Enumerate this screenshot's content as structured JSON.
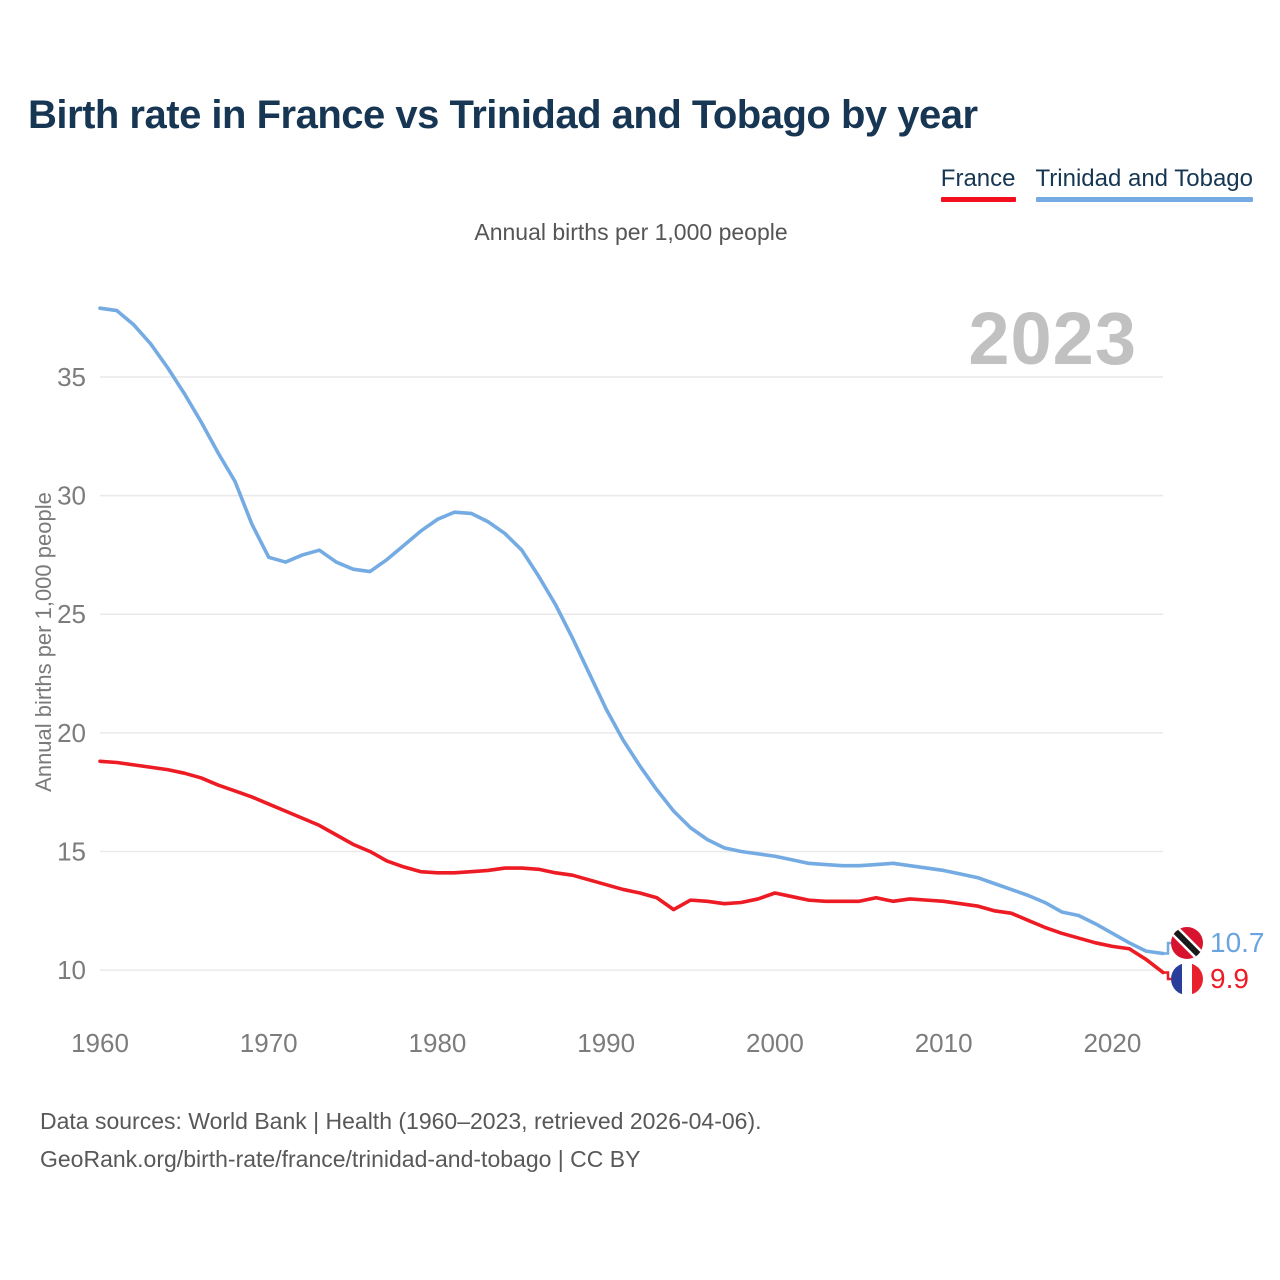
{
  "header": {
    "title": "Birth rate in France vs Trinidad and Tobago by year"
  },
  "legend": {
    "items": [
      {
        "label": "France",
        "color": "#f3101e"
      },
      {
        "label": "Trinidad and Tobago",
        "color": "#74abe2"
      }
    ]
  },
  "subtitle": "Annual births per 1,000 people",
  "watermark": "2023",
  "y_axis_label": "Annual births per 1,000 people",
  "end_labels": [
    {
      "series": "Trinidad and Tobago",
      "value": "10.7",
      "color": "#68a4e0",
      "flag": "trinidad-and-tobago-flag"
    },
    {
      "series": "France",
      "value": "9.9",
      "color": "#ed1b24",
      "flag": "france-flag"
    }
  ],
  "footer": {
    "line1": "Data sources: World Bank | Health (1960–2023, retrieved 2026-04-06).",
    "line2": "GeoRank.org/birth-rate/france/trinidad-and-tobago | CC BY"
  },
  "chart_data": {
    "type": "line",
    "title": "Birth rate in France vs Trinidad and Tobago by year",
    "ylabel": "Annual births per 1,000 people",
    "ylim": [
      8.5,
      38.5
    ],
    "yticks": [
      10,
      15,
      20,
      25,
      30,
      35
    ],
    "xticks": [
      1960,
      1970,
      1980,
      1990,
      2000,
      2010,
      2020
    ],
    "grid": "horizontal",
    "legend_position": "top-right",
    "x": [
      1960,
      1961,
      1962,
      1963,
      1964,
      1965,
      1966,
      1967,
      1968,
      1969,
      1970,
      1971,
      1972,
      1973,
      1974,
      1975,
      1976,
      1977,
      1978,
      1979,
      1980,
      1981,
      1982,
      1983,
      1984,
      1985,
      1986,
      1987,
      1988,
      1989,
      1990,
      1991,
      1992,
      1993,
      1994,
      1995,
      1996,
      1997,
      1998,
      1999,
      2000,
      2001,
      2002,
      2003,
      2004,
      2005,
      2006,
      2007,
      2008,
      2009,
      2010,
      2011,
      2012,
      2013,
      2014,
      2015,
      2016,
      2017,
      2018,
      2019,
      2020,
      2021,
      2022,
      2023
    ],
    "series": [
      {
        "name": "France",
        "color": "#ed1b24",
        "values": [
          18.8,
          18.75,
          18.65,
          18.55,
          18.45,
          18.3,
          18.1,
          17.8,
          17.55,
          17.3,
          17.0,
          16.7,
          16.4,
          16.1,
          15.7,
          15.3,
          15.0,
          14.6,
          14.35,
          14.15,
          14.1,
          14.1,
          14.15,
          14.2,
          14.3,
          14.3,
          14.25,
          14.1,
          14.0,
          13.8,
          13.6,
          13.4,
          13.25,
          13.05,
          12.55,
          12.95,
          12.9,
          12.8,
          12.85,
          13.0,
          13.25,
          13.1,
          12.95,
          12.9,
          12.9,
          12.9,
          13.05,
          12.9,
          13.0,
          12.95,
          12.9,
          12.8,
          12.7,
          12.5,
          12.4,
          12.1,
          11.8,
          11.55,
          11.35,
          11.15,
          11.0,
          10.9,
          10.45,
          9.9
        ]
      },
      {
        "name": "Trinidad and Tobago",
        "color": "#74abe2",
        "values": [
          37.9,
          37.8,
          37.2,
          36.4,
          35.4,
          34.3,
          33.1,
          31.8,
          30.6,
          28.8,
          27.4,
          27.2,
          27.5,
          27.7,
          27.2,
          26.9,
          26.8,
          27.3,
          27.9,
          28.5,
          29.0,
          29.3,
          29.25,
          28.9,
          28.4,
          27.7,
          26.6,
          25.4,
          24.0,
          22.5,
          21.0,
          19.7,
          18.6,
          17.6,
          16.7,
          16.0,
          15.5,
          15.15,
          15.0,
          14.9,
          14.8,
          14.65,
          14.5,
          14.45,
          14.4,
          14.4,
          14.45,
          14.5,
          14.4,
          14.3,
          14.2,
          14.05,
          13.9,
          13.65,
          13.4,
          13.15,
          12.85,
          12.45,
          12.3,
          11.95,
          11.55,
          11.15,
          10.8,
          10.7
        ]
      }
    ]
  }
}
